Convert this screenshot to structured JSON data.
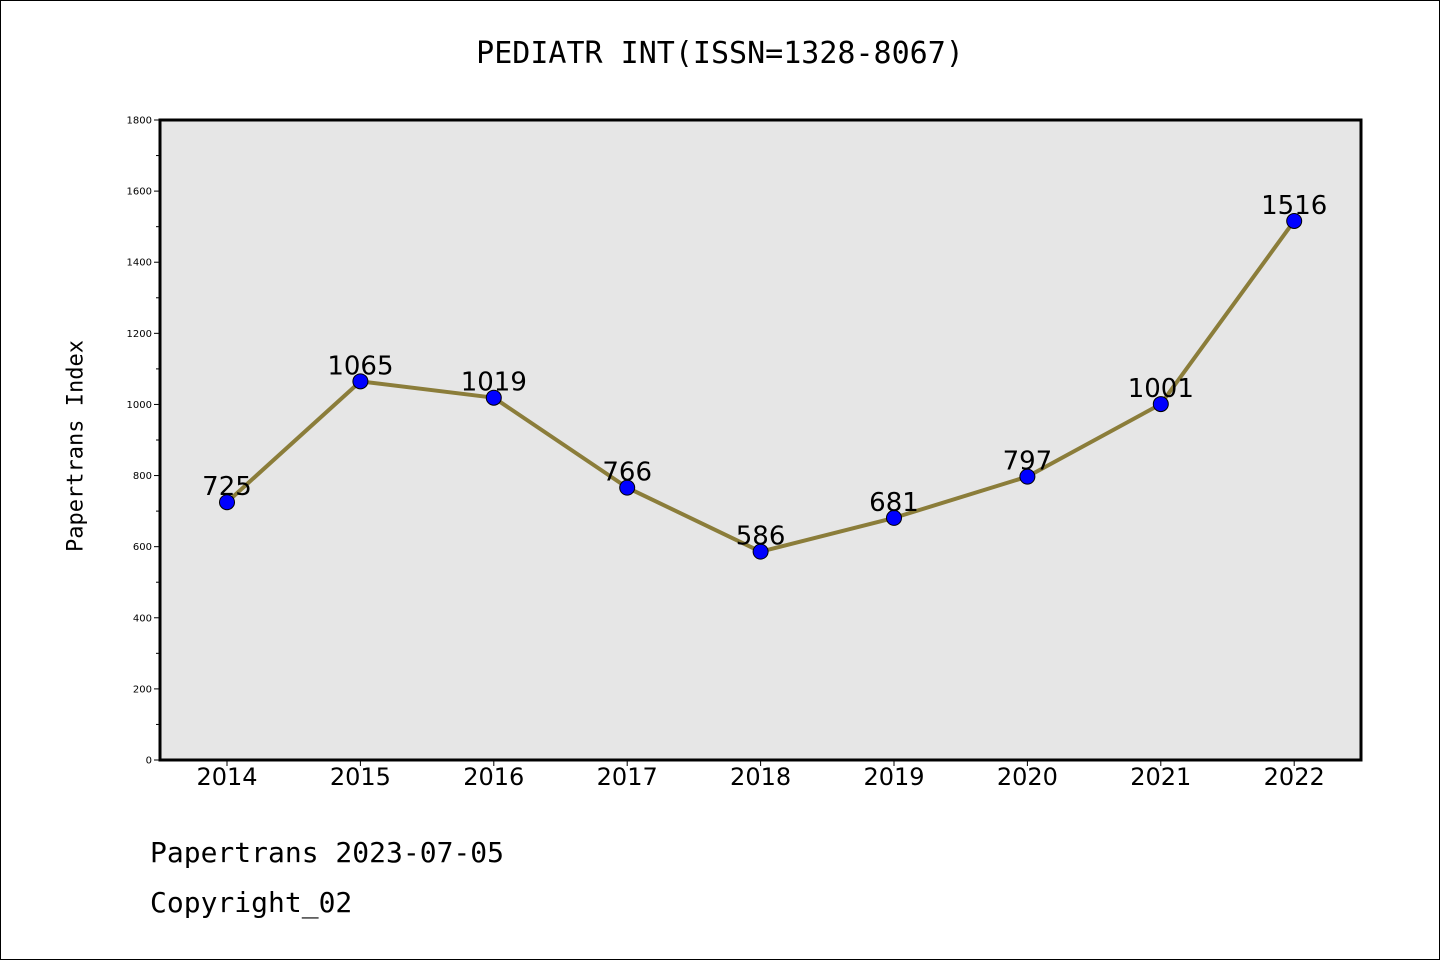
{
  "chart_data": {
    "type": "line",
    "title": "PEDIATR INT(ISSN=1328-8067)",
    "xlabel": "",
    "ylabel": "Papertrans Index",
    "categories": [
      "2014",
      "2015",
      "2016",
      "2017",
      "2018",
      "2019",
      "2020",
      "2021",
      "2022"
    ],
    "values": [
      725,
      1065,
      1019,
      766,
      586,
      681,
      797,
      1001,
      1516
    ],
    "ylim": [
      0,
      1800
    ],
    "yticks": [
      0,
      200,
      400,
      600,
      800,
      1000,
      1200,
      1400,
      1600,
      1800
    ],
    "grid": false,
    "legend": "none",
    "colors": {
      "line": "#8b7d3a",
      "marker": "#0000ff",
      "plot_bg": "#e6e6e6"
    }
  },
  "footer": {
    "line1": "Papertrans 2023-07-05",
    "line2": "Copyright_02"
  }
}
